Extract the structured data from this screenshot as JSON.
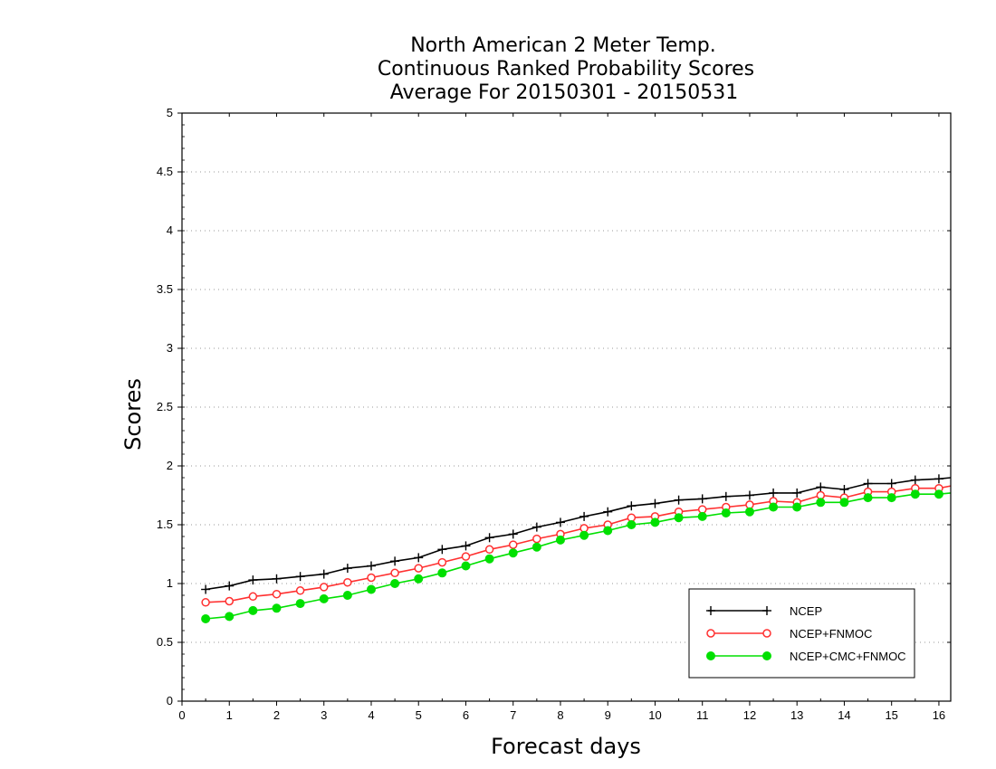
{
  "chart_data": {
    "type": "line",
    "title_lines": [
      "North American 2 Meter Temp.",
      "Continuous Ranked Probability Scores",
      "Average For 20150301 - 20150531"
    ],
    "xlabel": "Forecast days",
    "ylabel": "Scores",
    "xlim": [
      0,
      16.25
    ],
    "ylim": [
      0,
      5
    ],
    "x_ticks": [
      "0",
      "1",
      "2",
      "3",
      "4",
      "5",
      "6",
      "7",
      "8",
      "9",
      "10",
      "11",
      "12",
      "13",
      "14",
      "15",
      "16"
    ],
    "y_ticks": [
      "0",
      "0.5",
      "1",
      "1.5",
      "2",
      "2.5",
      "3",
      "3.5",
      "4",
      "4.5",
      "5"
    ],
    "grid": true,
    "legend_position": "bottom-right",
    "x": [
      0.5,
      1,
      1.5,
      2,
      2.5,
      3,
      3.5,
      4,
      4.5,
      5,
      5.5,
      6,
      6.5,
      7,
      7.5,
      8,
      8.5,
      9,
      9.5,
      10,
      10.5,
      11,
      11.5,
      12,
      12.5,
      13,
      13.5,
      14,
      14.5,
      15,
      15.5,
      16,
      16.25
    ],
    "series": [
      {
        "name": "NCEP",
        "color": "#000000",
        "marker": "plus",
        "values": [
          0.95,
          0.98,
          1.03,
          1.04,
          1.06,
          1.08,
          1.13,
          1.15,
          1.19,
          1.22,
          1.29,
          1.32,
          1.39,
          1.42,
          1.48,
          1.52,
          1.57,
          1.61,
          1.66,
          1.68,
          1.71,
          1.72,
          1.74,
          1.75,
          1.77,
          1.77,
          1.82,
          1.8,
          1.85,
          1.85,
          1.88,
          1.89,
          1.9
        ]
      },
      {
        "name": "NCEP+FNMOC",
        "color": "#ff3030",
        "marker": "open-circle",
        "values": [
          0.84,
          0.85,
          0.89,
          0.91,
          0.94,
          0.97,
          1.01,
          1.05,
          1.09,
          1.13,
          1.18,
          1.23,
          1.29,
          1.33,
          1.38,
          1.42,
          1.47,
          1.5,
          1.56,
          1.57,
          1.61,
          1.63,
          1.65,
          1.67,
          1.7,
          1.69,
          1.75,
          1.73,
          1.78,
          1.78,
          1.81,
          1.81,
          1.83
        ]
      },
      {
        "name": "NCEP+CMC+FNMOC",
        "color": "#00e000",
        "marker": "filled-circle",
        "values": [
          0.7,
          0.72,
          0.77,
          0.79,
          0.83,
          0.87,
          0.9,
          0.95,
          1.0,
          1.04,
          1.09,
          1.15,
          1.21,
          1.26,
          1.31,
          1.37,
          1.41,
          1.45,
          1.5,
          1.52,
          1.56,
          1.57,
          1.6,
          1.61,
          1.65,
          1.65,
          1.69,
          1.69,
          1.73,
          1.73,
          1.76,
          1.76,
          1.77
        ]
      }
    ]
  }
}
